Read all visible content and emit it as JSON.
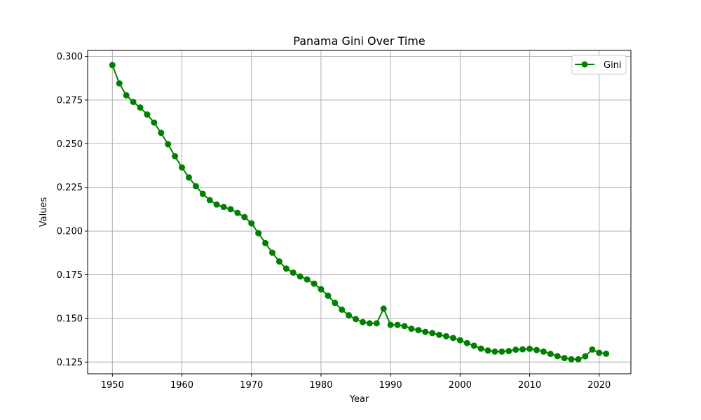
{
  "chart_data": {
    "type": "line",
    "title": "Panama Gini Over Time",
    "xlabel": "Year",
    "ylabel": "Values",
    "xlim": [
      1946.44,
      2024.56
    ],
    "ylim": [
      0.1183,
      0.3034
    ],
    "x_ticks": [
      "1950",
      "1960",
      "1970",
      "1980",
      "1990",
      "2000",
      "2010",
      "2020"
    ],
    "y_ticks": [
      "0.125",
      "0.150",
      "0.175",
      "0.200",
      "0.225",
      "0.250",
      "0.275",
      "0.300"
    ],
    "grid": true,
    "legend_position": "top-right",
    "series": [
      {
        "name": "Gini",
        "color": "#008000",
        "marker": "circle",
        "x": [
          1950,
          1951,
          1952,
          1953,
          1954,
          1955,
          1956,
          1957,
          1958,
          1959,
          1960,
          1961,
          1962,
          1963,
          1964,
          1965,
          1966,
          1967,
          1968,
          1969,
          1970,
          1971,
          1972,
          1973,
          1974,
          1975,
          1976,
          1977,
          1978,
          1979,
          1980,
          1981,
          1982,
          1983,
          1984,
          1985,
          1986,
          1987,
          1988,
          1989,
          1990,
          1991,
          1992,
          1993,
          1994,
          1995,
          1996,
          1997,
          1998,
          1999,
          2000,
          2001,
          2002,
          2003,
          2004,
          2005,
          2006,
          2007,
          2008,
          2009,
          2010,
          2011,
          2012,
          2013,
          2014,
          2015,
          2016,
          2017,
          2018,
          2019,
          2020,
          2021
        ],
        "values": [
          0.295,
          0.2845,
          0.2777,
          0.2739,
          0.2707,
          0.2667,
          0.2621,
          0.2562,
          0.2497,
          0.2428,
          0.2364,
          0.2307,
          0.2257,
          0.2213,
          0.2177,
          0.2152,
          0.2138,
          0.2125,
          0.2104,
          0.208,
          0.2044,
          0.1988,
          0.1931,
          0.1876,
          0.1826,
          0.1785,
          0.1762,
          0.174,
          0.1723,
          0.1699,
          0.1667,
          0.163,
          0.1589,
          0.155,
          0.1518,
          0.1496,
          0.1479,
          0.1472,
          0.1472,
          0.1556,
          0.1463,
          0.1463,
          0.1456,
          0.1441,
          0.1433,
          0.1423,
          0.1416,
          0.1406,
          0.1398,
          0.1388,
          0.1375,
          0.1359,
          0.1344,
          0.1327,
          0.1316,
          0.131,
          0.131,
          0.1313,
          0.1321,
          0.1323,
          0.1326,
          0.1319,
          0.131,
          0.1297,
          0.1284,
          0.1273,
          0.1266,
          0.1266,
          0.1283,
          0.1322,
          0.1303,
          0.1298
        ]
      }
    ]
  }
}
